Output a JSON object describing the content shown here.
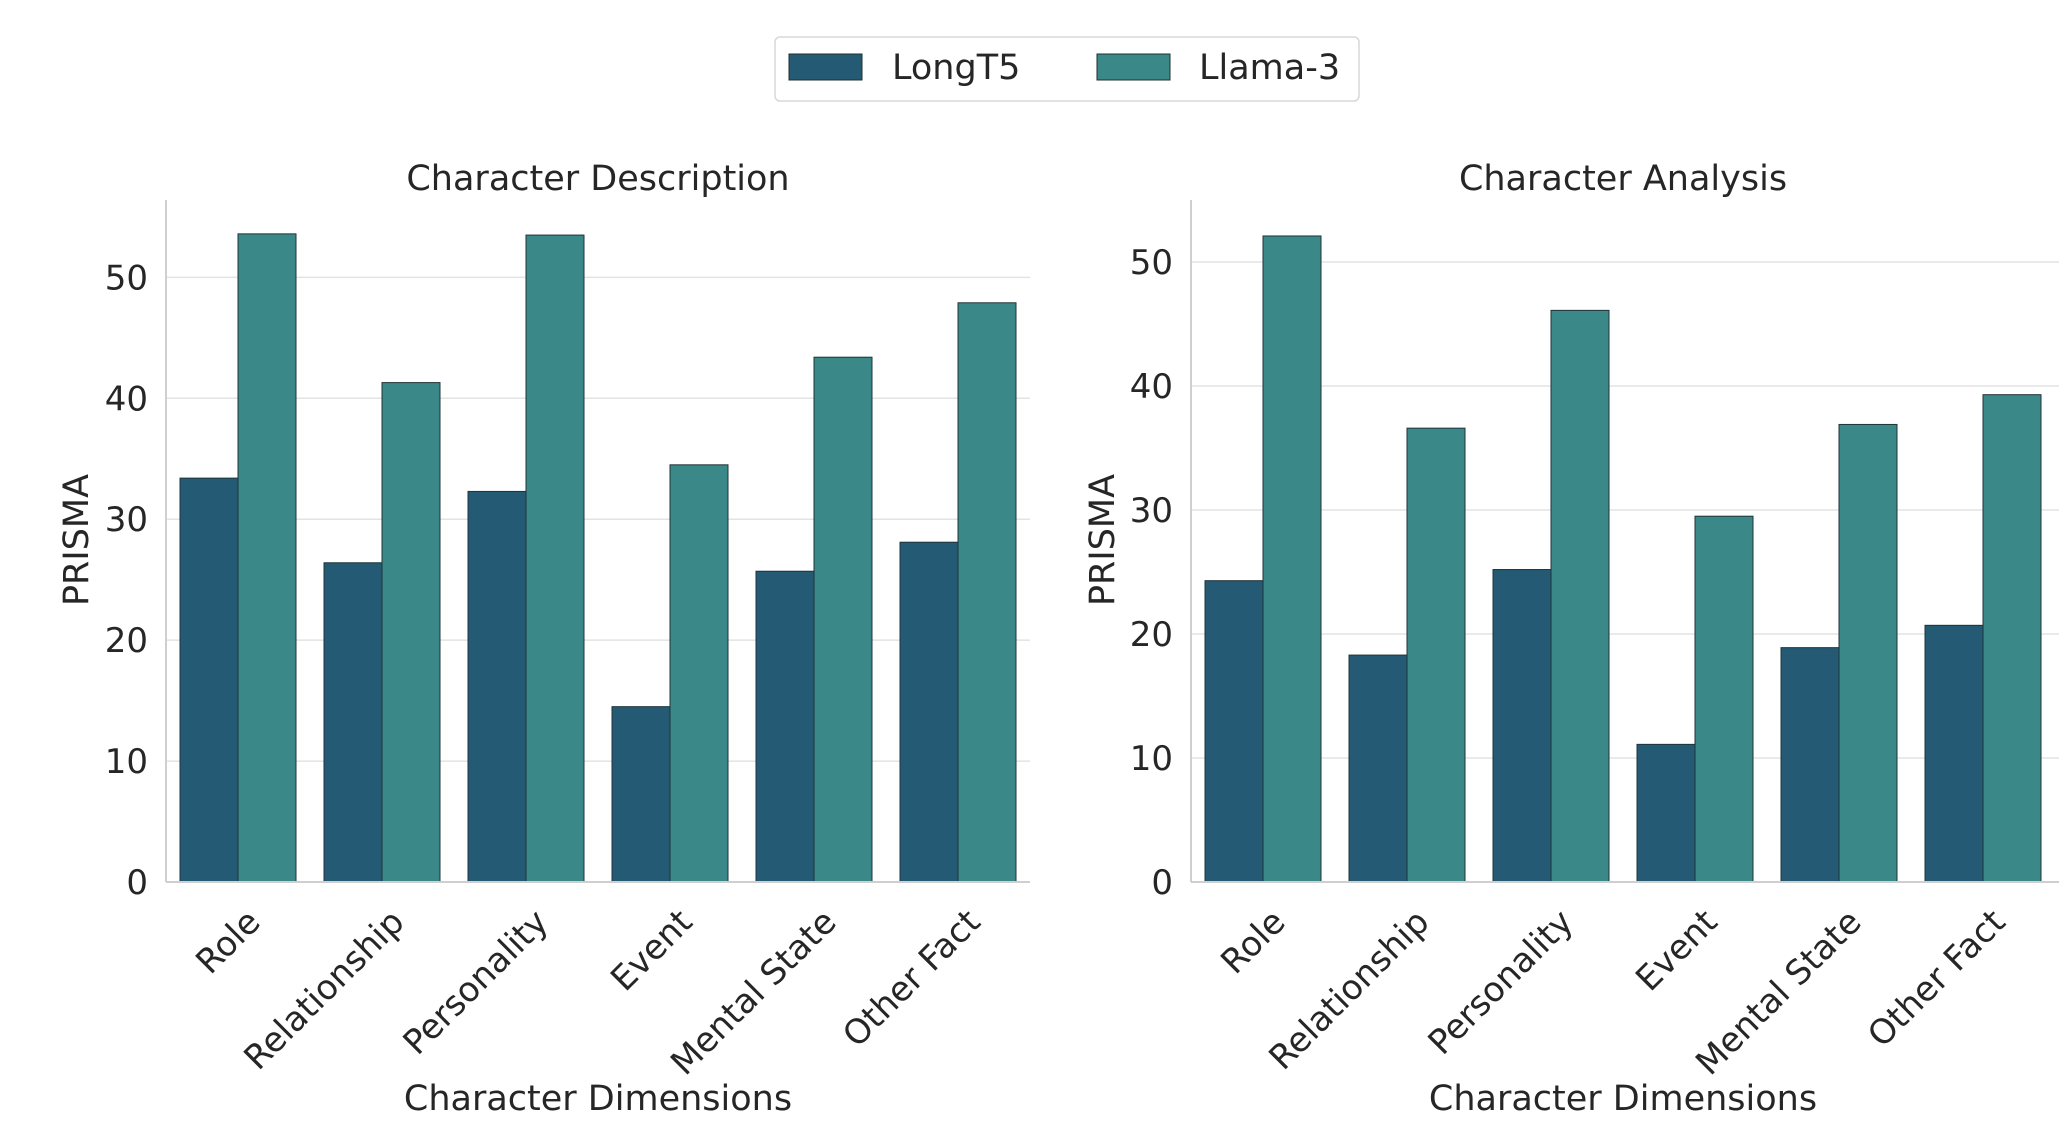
{
  "legend": {
    "items": [
      {
        "label": "LongT5",
        "color": "#245a74"
      },
      {
        "label": "Llama-3",
        "color": "#3a8888"
      }
    ]
  },
  "chart_data": [
    {
      "type": "bar",
      "title": "Character Description",
      "xlabel": "Character Dimensions",
      "ylabel": "PRISMA",
      "categories": [
        "Role",
        "Relationship",
        "Personality",
        "Event",
        "Mental State",
        "Other Fact"
      ],
      "series": [
        {
          "name": "LongT5",
          "values": [
            33.4,
            26.4,
            32.3,
            14.5,
            25.7,
            28.1
          ]
        },
        {
          "name": "Llama-3",
          "values": [
            53.6,
            41.3,
            53.5,
            34.5,
            43.4,
            47.9
          ]
        }
      ],
      "ylim": [
        0,
        56.4
      ],
      "yticks": [
        0,
        10,
        20,
        30,
        40,
        50
      ],
      "grid": "horizontal"
    },
    {
      "type": "bar",
      "title": "Character Analysis",
      "xlabel": "Character Dimensions",
      "ylabel": "PRISMA",
      "categories": [
        "Role",
        "Relationship",
        "Personality",
        "Event",
        "Mental State",
        "Other Fact"
      ],
      "series": [
        {
          "name": "LongT5",
          "values": [
            24.3,
            18.3,
            25.2,
            11.1,
            18.9,
            20.7
          ]
        },
        {
          "name": "Llama-3",
          "values": [
            52.1,
            36.6,
            46.1,
            29.5,
            36.9,
            39.3
          ]
        }
      ],
      "ylim": [
        0,
        55
      ],
      "yticks": [
        0,
        10,
        20,
        30,
        40,
        50
      ],
      "grid": "horizontal"
    }
  ]
}
